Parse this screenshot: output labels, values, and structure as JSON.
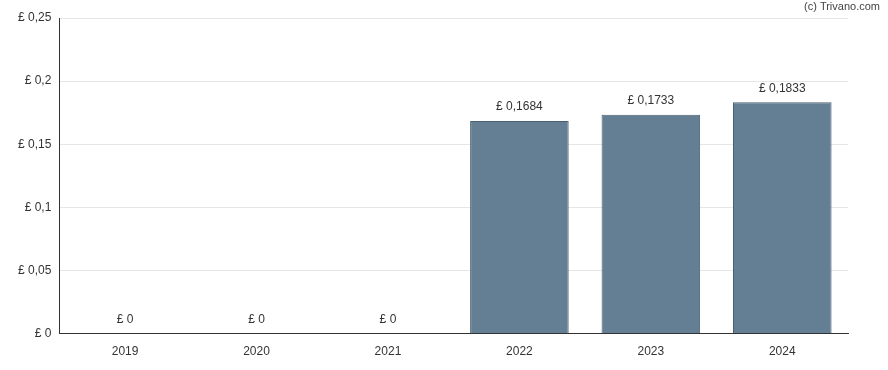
{
  "chart_data": {
    "type": "bar",
    "annotations": [
      "(c) Trivano.com"
    ],
    "categories": [
      "2019",
      "2020",
      "2021",
      "2022",
      "2023",
      "2024"
    ],
    "values": [
      0,
      0,
      0,
      0.1684,
      0.1733,
      0.1833
    ],
    "value_labels": [
      "£ 0",
      "£ 0",
      "£ 0",
      "£ 0,1684",
      "£ 0,1733",
      "£ 0,1833"
    ],
    "data_labels": true,
    "color": "#647f94",
    "ylim": [
      0,
      0.25
    ],
    "yticks": [
      {
        "value": 0,
        "label": "£ 0"
      },
      {
        "value": 0.05,
        "label": "£ 0,05"
      },
      {
        "value": 0.1,
        "label": "£ 0,1"
      },
      {
        "value": 0.15,
        "label": "£ 0,15"
      },
      {
        "value": 0.2,
        "label": "£ 0,2"
      },
      {
        "value": 0.25,
        "label": "£ 0,25"
      }
    ],
    "grid": true
  }
}
